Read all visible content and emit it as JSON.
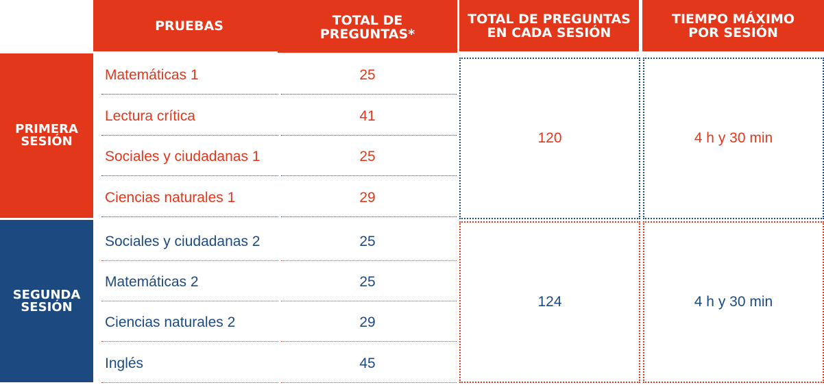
{
  "headers": {
    "pruebas": "PRUEBAS",
    "total_preguntas": "TOTAL DE\nPREGUNTAS*",
    "total_por_sesion": "TOTAL DE PREGUNTAS\nEN CADA SESIÓN",
    "tiempo_maximo": "TIEMPO MÁXIMO\nPOR SESIÓN"
  },
  "sessions": [
    {
      "label": "PRIMERA\nSESIÓN",
      "total": "120",
      "time": "4 h y 30 min",
      "tests": [
        {
          "name": "Matemáticas 1",
          "count": "25"
        },
        {
          "name": "Lectura crítica",
          "count": "41"
        },
        {
          "name": "Sociales y ciudadanas 1",
          "count": "25"
        },
        {
          "name": "Ciencias naturales 1",
          "count": "29"
        }
      ]
    },
    {
      "label": "SEGUNDA\nSESIÓN",
      "total": "124",
      "time": "4 h y 30 min",
      "tests": [
        {
          "name": "Sociales y ciudadanas 2",
          "count": "25"
        },
        {
          "name": "Matemáticas 2",
          "count": "25"
        },
        {
          "name": "Ciencias naturales 2",
          "count": "29"
        },
        {
          "name": "Inglés",
          "count": "45"
        }
      ]
    }
  ],
  "colors": {
    "red": "#e3371c",
    "blue": "#1c4a80"
  }
}
